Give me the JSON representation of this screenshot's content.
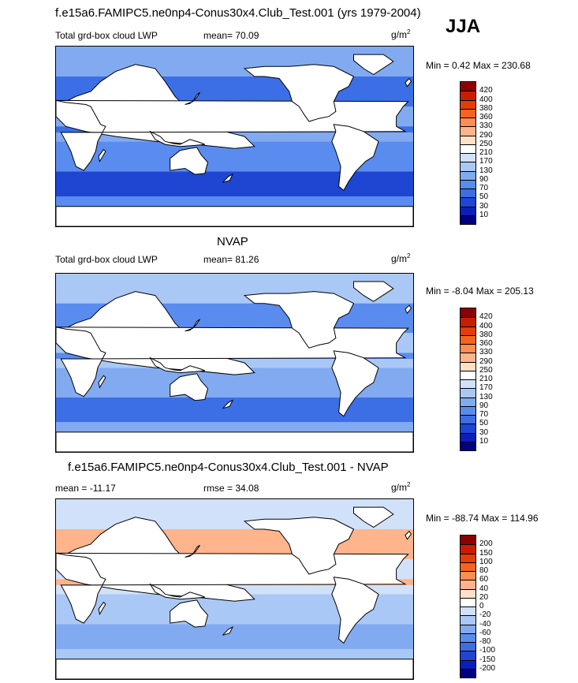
{
  "title": "f.e15a6.FAMIPC5.ne0np4-Conus30x4.Club_Test.001 (yrs 1979-2004)",
  "season": "JJA",
  "panels": [
    {
      "id": "model",
      "heading": "",
      "left_label": "Total grd-box cloud LWP",
      "mean_label": "mean=  70.09",
      "units": "g/m",
      "units_sup": "2",
      "minmax": "Min =   0.42 Max = 230.68",
      "levels": [
        "420",
        "400",
        "380",
        "360",
        "330",
        "290",
        "250",
        "210",
        "170",
        "130",
        "90",
        "70",
        "50",
        "30",
        "10"
      ],
      "colors": [
        "#8c0000",
        "#c81e00",
        "#e63c0a",
        "#f5641e",
        "#ff8c50",
        "#ffb48c",
        "#ffe1c8",
        "#ffffff",
        "#d2e1fa",
        "#aac8f5",
        "#82aaf0",
        "#5a8cf0",
        "#3c6ee6",
        "#1e46d2",
        "#0a1ebe",
        "#000082"
      ],
      "fill": {
        "land": "#ffffff",
        "ocean_lo": "#82aaf0",
        "ocean_mid": "#5a8cf0",
        "ocean_hi": "#3c6ee6",
        "ocean_vhi": "#1e46d2"
      }
    },
    {
      "id": "obs",
      "heading": "NVAP",
      "left_label": "Total grd-box cloud LWP",
      "mean_label": "mean=  81.26",
      "units": "g/m",
      "units_sup": "2",
      "minmax": "Min =  -8.04 Max = 205.13",
      "levels": [
        "420",
        "400",
        "380",
        "360",
        "330",
        "290",
        "250",
        "210",
        "170",
        "130",
        "90",
        "70",
        "50",
        "30",
        "10"
      ],
      "colors": [
        "#8c0000",
        "#c81e00",
        "#e63c0a",
        "#f5641e",
        "#ff8c50",
        "#ffb48c",
        "#ffe1c8",
        "#ffffff",
        "#d2e1fa",
        "#aac8f5",
        "#82aaf0",
        "#5a8cf0",
        "#3c6ee6",
        "#1e46d2",
        "#0a1ebe",
        "#000082"
      ],
      "fill": {
        "land": "#ffffff",
        "ocean_lo": "#aac8f5",
        "ocean_mid": "#82aaf0",
        "ocean_hi": "#5a8cf0",
        "ocean_vhi": "#3c6ee6"
      }
    },
    {
      "id": "diff",
      "heading": "f.e15a6.FAMIPC5.ne0np4-Conus30x4.Club_Test.001 - NVAP",
      "left_label": "mean = -11.17",
      "mean_label": "rmse =  34.08",
      "units": "g/m",
      "units_sup": "2",
      "minmax": "Min = -88.74 Max = 114.96",
      "levels": [
        "200",
        "150",
        "100",
        "80",
        "60",
        "40",
        "20",
        "0",
        "-20",
        "-40",
        "-60",
        "-80",
        "-100",
        "-150",
        "-200"
      ],
      "colors": [
        "#8c0000",
        "#c81e00",
        "#e63c0a",
        "#f5641e",
        "#ff8c50",
        "#ffb48c",
        "#ffe1c8",
        "#ffffff",
        "#d2e1fa",
        "#aac8f5",
        "#82aaf0",
        "#5a8cf0",
        "#3c6ee6",
        "#1e46d2",
        "#0a1ebe",
        "#000082"
      ],
      "fill": {
        "land": "#ffffff",
        "ocean_lo": "#d2e1fa",
        "ocean_mid": "#aac8f5",
        "ocean_hi": "#ffb48c",
        "ocean_vhi": "#82aaf0"
      }
    }
  ]
}
